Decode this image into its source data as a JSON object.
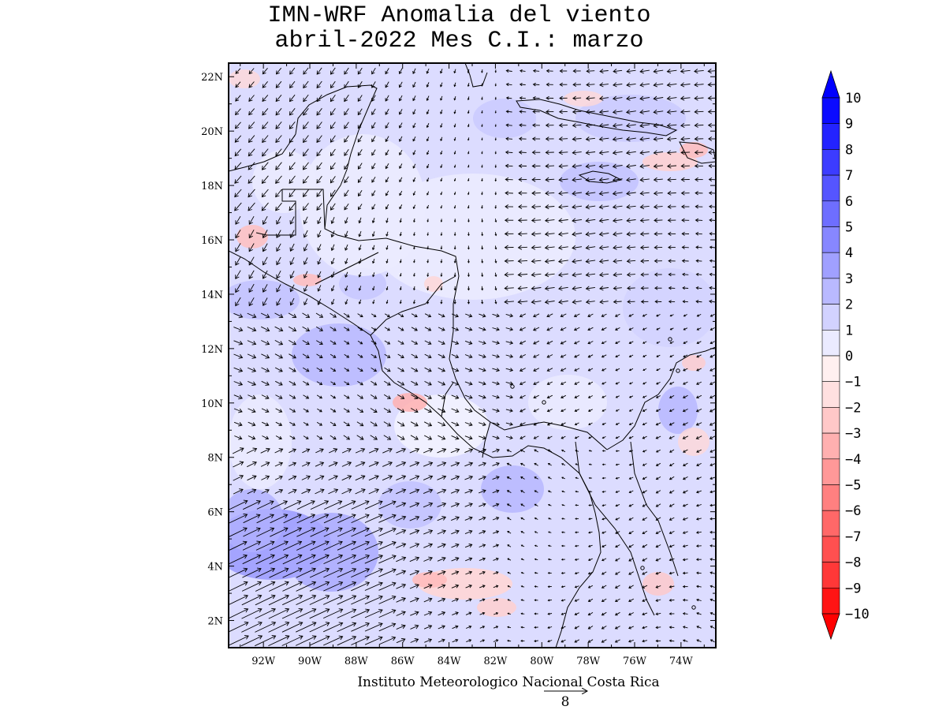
{
  "title": {
    "line1": "IMN-WRF Anomalia del viento",
    "line2": "abril-2022 Mes C.I.: marzo"
  },
  "map": {
    "lon_range": [
      -93.5,
      -72.5
    ],
    "lat_range": [
      1,
      22.5
    ],
    "lat_labels": [
      "2N",
      "4N",
      "6N",
      "8N",
      "10N",
      "12N",
      "14N",
      "16N",
      "18N",
      "20N",
      "22N"
    ],
    "lat_values": [
      2,
      4,
      6,
      8,
      10,
      12,
      14,
      16,
      18,
      20,
      22
    ],
    "lon_labels": [
      "92W",
      "90W",
      "88W",
      "86W",
      "84W",
      "82W",
      "80W",
      "78W",
      "76W",
      "74W"
    ],
    "lon_values": [
      -92,
      -90,
      -88,
      -86,
      -84,
      -82,
      -80,
      -78,
      -76,
      -74
    ]
  },
  "colorbar": {
    "labels": [
      "10",
      "9",
      "8",
      "7",
      "6",
      "5",
      "4",
      "3",
      "2",
      "1",
      "0",
      "−1",
      "−2",
      "−3",
      "−4",
      "−5",
      "−6",
      "−7",
      "−8",
      "−9",
      "−10"
    ],
    "colors": [
      "#0b0bff",
      "#2323ff",
      "#3c3cff",
      "#5555ff",
      "#6e6eff",
      "#8787ff",
      "#a0a0ff",
      "#b9b9ff",
      "#d2d2ff",
      "#ebebff",
      "#fff0f0",
      "#ffe0e0",
      "#ffc8c8",
      "#ffb0b0",
      "#ff9898",
      "#ff8080",
      "#ff6868",
      "#ff5050",
      "#ff3838",
      "#ff1414"
    ],
    "top_arrow_color": "#0000ff",
    "bottom_arrow_color": "#ff0000"
  },
  "footer": {
    "credit": "Instituto Meteorologico Nacional Costa Rica",
    "reference_vector": "8"
  }
}
